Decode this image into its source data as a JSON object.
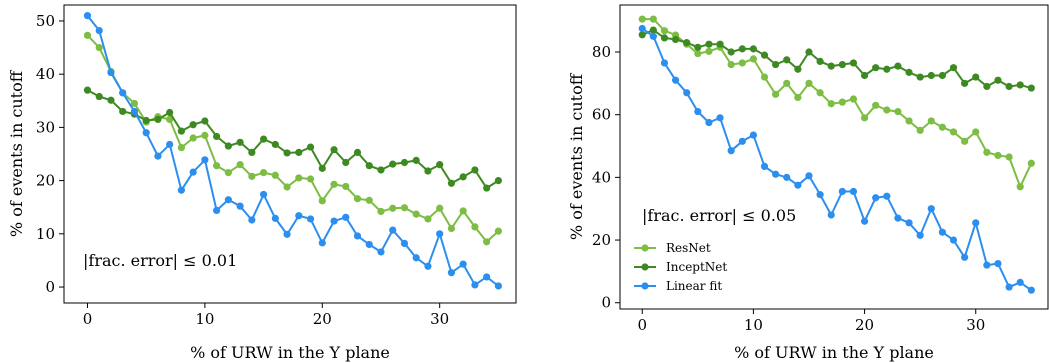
{
  "chart_data": [
    {
      "type": "line",
      "xlabel": "% of URW in the Y plane",
      "ylabel": "% of events in cutoff",
      "annotation": "|frac. error| ≤ 0.01",
      "xlim": [
        -2,
        36.5
      ],
      "ylim": [
        -3,
        53
      ],
      "xticks": [
        0,
        10,
        20,
        30
      ],
      "yticks": [
        0,
        10,
        20,
        30,
        40,
        50
      ],
      "x": [
        0,
        1,
        2,
        3,
        4,
        5,
        6,
        7,
        8,
        9,
        10,
        11,
        12,
        13,
        14,
        15,
        16,
        17,
        18,
        19,
        20,
        21,
        22,
        23,
        24,
        25,
        26,
        27,
        28,
        29,
        30,
        31,
        32,
        33,
        34,
        35
      ],
      "series": [
        {
          "name": "ResNet",
          "color": "#7dbd44",
          "values": [
            47.3,
            45.0,
            40.5,
            36.5,
            34.5,
            31.0,
            32.0,
            31.5,
            26.2,
            28.0,
            28.5,
            22.8,
            21.5,
            23.0,
            20.8,
            21.5,
            21.0,
            18.8,
            20.5,
            20.3,
            16.2,
            19.3,
            18.9,
            16.6,
            16.3,
            14.2,
            14.8,
            14.9,
            13.7,
            12.8,
            14.8,
            11.0,
            14.3,
            11.3,
            8.5,
            10.5
          ]
        },
        {
          "name": "InceptNet",
          "color": "#3e8a22",
          "values": [
            37.0,
            35.8,
            35.1,
            33.0,
            32.5,
            31.3,
            31.5,
            32.8,
            29.3,
            30.5,
            31.2,
            28.3,
            26.5,
            27.2,
            25.3,
            27.8,
            26.8,
            25.2,
            25.3,
            26.3,
            22.3,
            25.8,
            23.4,
            25.3,
            22.8,
            22.0,
            23.1,
            23.4,
            23.8,
            21.8,
            23.0,
            19.5,
            20.7,
            22.0,
            18.6,
            20.0
          ]
        },
        {
          "name": "Linear fit",
          "color": "#2c8ff0",
          "values": [
            51.0,
            48.2,
            40.3,
            36.5,
            33.0,
            29.0,
            24.6,
            26.8,
            18.2,
            21.6,
            23.9,
            14.4,
            16.4,
            15.2,
            12.6,
            17.4,
            12.9,
            9.9,
            13.4,
            12.8,
            8.3,
            12.4,
            13.1,
            9.6,
            8.0,
            6.6,
            10.7,
            8.2,
            5.5,
            3.9,
            10.0,
            2.7,
            4.3,
            0.4,
            1.9,
            0.2
          ]
        }
      ]
    },
    {
      "type": "line",
      "xlabel": "% of URW in the Y plane",
      "ylabel": "% of events in cutoff",
      "annotation": "|frac. error| ≤ 0.05",
      "legend": "lower-left",
      "xlim": [
        -2,
        36.5
      ],
      "ylim": [
        -2,
        95
      ],
      "xticks": [
        0,
        10,
        20,
        30
      ],
      "yticks": [
        0,
        20,
        40,
        60,
        80
      ],
      "x": [
        0,
        1,
        2,
        3,
        4,
        5,
        6,
        7,
        8,
        9,
        10,
        11,
        12,
        13,
        14,
        15,
        16,
        17,
        18,
        19,
        20,
        21,
        22,
        23,
        24,
        25,
        26,
        27,
        28,
        29,
        30,
        31,
        32,
        33,
        34,
        35
      ],
      "series": [
        {
          "name": "ResNet",
          "color": "#7dbd44",
          "values": [
            90.5,
            90.5,
            86.8,
            85.4,
            82.5,
            79.5,
            80.2,
            81.5,
            76.0,
            76.5,
            77.8,
            72.0,
            66.5,
            70.0,
            65.5,
            70.0,
            67.0,
            63.5,
            64.0,
            65.0,
            59.0,
            63.0,
            61.5,
            61.0,
            58.0,
            55.0,
            58.0,
            56.0,
            54.5,
            51.5,
            54.5,
            48.0,
            47.0,
            46.5,
            37.0,
            44.5
          ]
        },
        {
          "name": "InceptNet",
          "color": "#3e8a22",
          "values": [
            85.5,
            87.0,
            84.5,
            84.0,
            83.0,
            81.5,
            82.5,
            82.5,
            80.0,
            81.0,
            81.0,
            79.0,
            76.0,
            77.5,
            74.5,
            80.0,
            77.0,
            75.5,
            76.0,
            76.5,
            72.5,
            75.0,
            74.5,
            75.5,
            73.5,
            72.0,
            72.5,
            72.5,
            75.0,
            70.0,
            72.0,
            69.0,
            71.0,
            69.0,
            69.5,
            68.5
          ]
        },
        {
          "name": "Linear fit",
          "color": "#2c8ff0",
          "values": [
            87.5,
            85.0,
            76.5,
            71.0,
            67.0,
            61.0,
            57.5,
            59.0,
            48.5,
            51.5,
            53.5,
            43.5,
            41.0,
            40.0,
            37.5,
            40.5,
            34.5,
            28.0,
            35.5,
            35.5,
            26.0,
            33.5,
            34.0,
            27.0,
            25.5,
            21.5,
            30.0,
            22.5,
            20.0,
            14.5,
            25.5,
            12.0,
            12.5,
            5.0,
            6.5,
            4.0
          ]
        }
      ]
    }
  ]
}
